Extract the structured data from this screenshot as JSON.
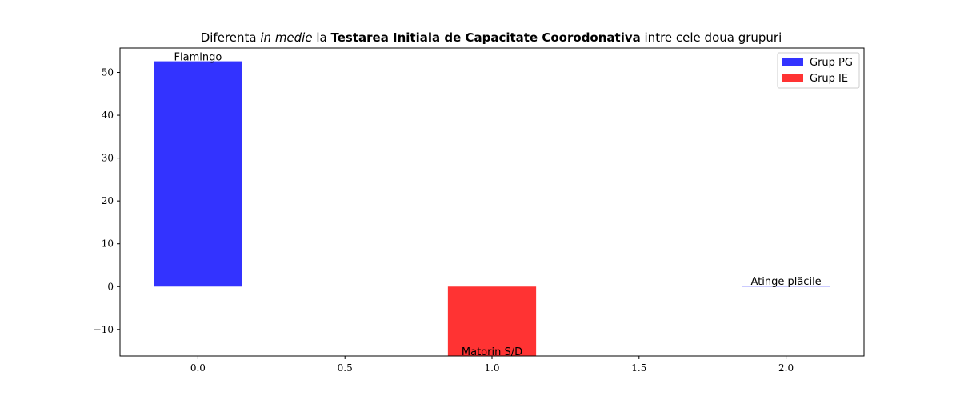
{
  "chart_data": {
    "type": "bar",
    "title": {
      "part1": "Diferenta ",
      "part2_italic": "in medie",
      "part3": " la ",
      "part4_bold": "Testarea Initiala de Capacitate Coorodonativa",
      "part5": " intre cele doua grupuri"
    },
    "xlabel": "",
    "ylabel": "",
    "xlim": [
      -0.265,
      2.265
    ],
    "ylim": [
      -16.2,
      55.7
    ],
    "xticks": [
      {
        "value": 0.0,
        "label": "0.0"
      },
      {
        "value": 0.5,
        "label": "0.5"
      },
      {
        "value": 1.0,
        "label": "1.0"
      },
      {
        "value": 1.5,
        "label": "1.5"
      },
      {
        "value": 2.0,
        "label": "2.0"
      }
    ],
    "yticks": [
      {
        "value": -10,
        "label": "−10"
      },
      {
        "value": 0,
        "label": "0"
      },
      {
        "value": 10,
        "label": "10"
      },
      {
        "value": 20,
        "label": "20"
      },
      {
        "value": 30,
        "label": "30"
      },
      {
        "value": 40,
        "label": "40"
      },
      {
        "value": 50,
        "label": "50"
      }
    ],
    "bar_width": 0.3,
    "bars": [
      {
        "x": 0,
        "value": 52.6,
        "label": "Flamingo",
        "group": "Grup PG",
        "color": "#3333ff"
      },
      {
        "x": 1,
        "value": -16.2,
        "label": "Matorin S/D",
        "group": "Grup IE",
        "color": "#ff3333"
      },
      {
        "x": 2,
        "value": 0.2,
        "label": "Atinge plăcile",
        "group": "Grup PG",
        "color": "#3333ff"
      }
    ],
    "legend": {
      "position": "top-right",
      "entries": [
        {
          "label": "Grup PG",
          "color": "#3333ff"
        },
        {
          "label": "Grup IE",
          "color": "#ff3333"
        }
      ]
    },
    "grid": false
  }
}
